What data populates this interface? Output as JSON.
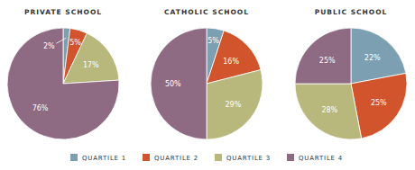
{
  "chart_data": [
    {
      "type": "pie",
      "title": "PRIVATE SCHOOL",
      "categories": [
        "QUARTILE 1",
        "QUARTILE 2",
        "QUARTILE 3",
        "QUARTILE 4"
      ],
      "values": [
        2,
        5,
        17,
        76
      ],
      "value_labels": [
        "2%",
        "5%",
        "17%",
        "76%"
      ],
      "colors": [
        "#7c9fb2",
        "#d1542c",
        "#b8b87c",
        "#8e6a83"
      ],
      "data_labels": true,
      "legend": "bottom"
    },
    {
      "type": "pie",
      "title": "CATHOLIC SCHOOL",
      "categories": [
        "QUARTILE 1",
        "QUARTILE 2",
        "QUARTILE 3",
        "QUARTILE 4"
      ],
      "values": [
        5,
        16,
        29,
        50
      ],
      "value_labels": [
        "5%",
        "16%",
        "29%",
        "50%"
      ],
      "colors": [
        "#7c9fb2",
        "#d1542c",
        "#b8b87c",
        "#8e6a83"
      ],
      "data_labels": true
    },
    {
      "type": "pie",
      "title": "PUBLIC SCHOOL",
      "categories": [
        "QUARTILE 1",
        "QUARTILE 2",
        "QUARTILE 3",
        "QUARTILE 4"
      ],
      "values": [
        22,
        25,
        28,
        25
      ],
      "value_labels": [
        "22%",
        "25%",
        "28%",
        "25%"
      ],
      "colors": [
        "#7c9fb2",
        "#d1542c",
        "#b8b87c",
        "#8e6a83"
      ],
      "data_labels": true
    }
  ]
}
